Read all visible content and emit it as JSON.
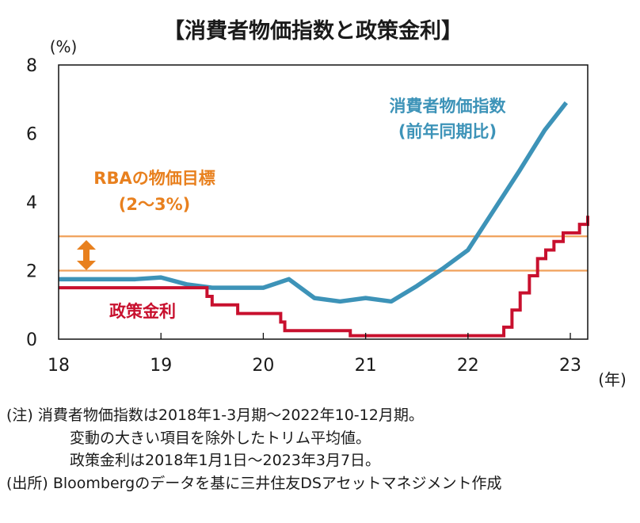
{
  "chart_data": {
    "type": "line",
    "title": "【消費者物価指数と政策金利】",
    "yunit": "(%)",
    "xunit": "(年)",
    "ylim": [
      0,
      8
    ],
    "yticks": [
      "0",
      "2",
      "4",
      "6",
      "8"
    ],
    "xlim": [
      2018.0,
      2023.17
    ],
    "xticks": [
      {
        "label": "18",
        "value": 2018
      },
      {
        "label": "19",
        "value": 2019
      },
      {
        "label": "20",
        "value": 2020
      },
      {
        "label": "21",
        "value": 2021
      },
      {
        "label": "22",
        "value": 2022
      },
      {
        "label": "23",
        "value": 2023
      }
    ],
    "target_band": {
      "label_line1": "RBAの物価目標",
      "label_line2": "(2〜3%)",
      "low": 2,
      "high": 3,
      "color": "#f0a05a"
    },
    "series": [
      {
        "name": "消費者物価指数",
        "label_line1": "消費者物価指数",
        "label_line2": "(前年同期比)",
        "color": "#3d93b8",
        "step": false,
        "points": [
          [
            2018.0,
            1.75
          ],
          [
            2018.25,
            1.75
          ],
          [
            2018.5,
            1.75
          ],
          [
            2018.75,
            1.75
          ],
          [
            2019.0,
            1.8
          ],
          [
            2019.25,
            1.6
          ],
          [
            2019.5,
            1.5
          ],
          [
            2019.75,
            1.5
          ],
          [
            2020.0,
            1.5
          ],
          [
            2020.25,
            1.75
          ],
          [
            2020.5,
            1.2
          ],
          [
            2020.75,
            1.1
          ],
          [
            2021.0,
            1.2
          ],
          [
            2021.25,
            1.1
          ],
          [
            2021.5,
            1.55
          ],
          [
            2021.75,
            2.05
          ],
          [
            2022.0,
            2.6
          ],
          [
            2022.25,
            3.75
          ],
          [
            2022.5,
            4.9
          ],
          [
            2022.75,
            6.1
          ],
          [
            2022.96,
            6.9
          ]
        ]
      },
      {
        "name": "政策金利",
        "label": "政策金利",
        "color": "#c8102e",
        "step": true,
        "points": [
          [
            2018.0,
            1.5
          ],
          [
            2019.45,
            1.25
          ],
          [
            2019.5,
            1.0
          ],
          [
            2019.75,
            0.75
          ],
          [
            2020.17,
            0.5
          ],
          [
            2020.21,
            0.25
          ],
          [
            2020.85,
            0.1
          ],
          [
            2022.35,
            0.35
          ],
          [
            2022.43,
            0.85
          ],
          [
            2022.51,
            1.35
          ],
          [
            2022.6,
            1.85
          ],
          [
            2022.68,
            2.35
          ],
          [
            2022.76,
            2.6
          ],
          [
            2022.84,
            2.85
          ],
          [
            2022.93,
            3.1
          ],
          [
            2023.09,
            3.35
          ],
          [
            2023.17,
            3.6
          ]
        ]
      }
    ]
  },
  "notes": {
    "line1": "(注) 消費者物価指数は2018年1-3月期〜2022年10-12月期。",
    "line2": "変動の大きい項目を除外したトリム平均値。",
    "line3": "政策金利は2018年1月1日〜2023年3月7日。",
    "line4": "(出所) Bloombergのデータを基に三井住友DSアセットマネジメント作成"
  }
}
